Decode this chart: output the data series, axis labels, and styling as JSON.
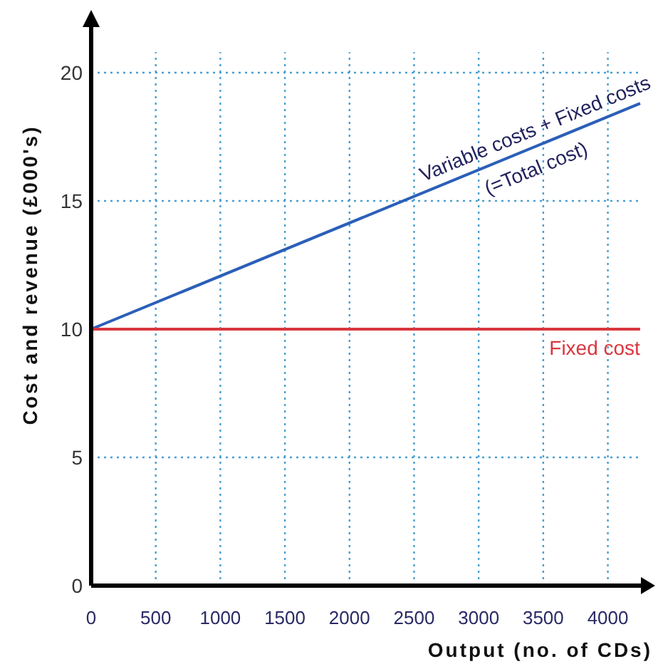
{
  "chart_data": {
    "type": "line",
    "xlabel": "Output  (no. of CDs)",
    "ylabel": "Cost and revenue  (£000's)",
    "xlim": [
      0,
      4300
    ],
    "xticks": [
      0,
      500,
      1000,
      1500,
      2000,
      2500,
      3000,
      3500,
      4000
    ],
    "ylim": [
      0,
      22
    ],
    "yticks": [
      0,
      5,
      10,
      15,
      20
    ],
    "grid": true,
    "x": [
      0,
      4250
    ],
    "series": [
      {
        "name": "Variable costs + Fixed costs (=Total cost)",
        "color": "#2b5fb8",
        "values": [
          10,
          18.8
        ]
      },
      {
        "name": "Fixed cost",
        "color": "#d9363e",
        "values": [
          10,
          10
        ]
      }
    ]
  }
}
